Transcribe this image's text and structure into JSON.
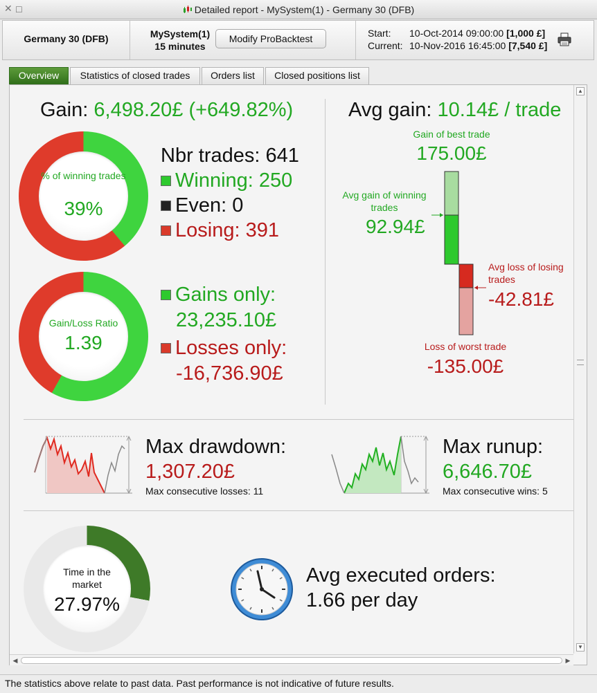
{
  "window": {
    "title": "Detailed report - MySystem(1) - Germany 30 (DFB)",
    "close_glyph": "✕",
    "maximize_glyph": "☐"
  },
  "header": {
    "instrument": "Germany 30 (DFB)",
    "system_name": "MySystem(1)",
    "timeframe": "15 minutes",
    "modify_button": "Modify ProBacktest",
    "start_label": "Start:",
    "start_date": "10-Oct-2014 09:00:00",
    "start_value": "[1,000 £]",
    "current_label": "Current:",
    "current_date": "10-Nov-2016 16:45:00",
    "current_value": "[7,540 £]"
  },
  "tabs": [
    {
      "label": "Overview",
      "active": true
    },
    {
      "label": "Statistics of closed trades",
      "active": false
    },
    {
      "label": "Orders list",
      "active": false
    },
    {
      "label": "Closed positions list",
      "active": false
    }
  ],
  "overview": {
    "gain_label": "Gain:",
    "gain_value": "6,498.20£ (+649.82%)",
    "winning_ring": {
      "label": "% of winning trades",
      "value": "39%",
      "fraction": 0.39
    },
    "nbr_trades": "Nbr trades: 641",
    "winning": "Winning: 250",
    "even": "Even: 0",
    "losing": "Losing: 391",
    "ratio_ring": {
      "label": "Gain/Loss Ratio",
      "value": "1.39",
      "green_fraction": 0.581
    },
    "gains_only_label": "Gains only:",
    "gains_only_value": "23,235.10£",
    "losses_only_label": "Losses only:",
    "losses_only_value": "-16,736.90£",
    "avg_gain_label": "Avg gain:",
    "avg_gain_value": "10.14£ / trade",
    "best_trade_label": "Gain of best trade",
    "best_trade_value": "175.00£",
    "avg_win_label_1": "Avg gain of winning",
    "avg_win_label_2": "trades",
    "avg_win_value": "92.94£",
    "avg_loss_label_1": "Avg loss of losing",
    "avg_loss_label_2": "trades",
    "avg_loss_value": "-42.81£",
    "worst_trade_label": "Loss of worst trade",
    "worst_trade_value": "-135.00£",
    "max_drawdown_label": "Max drawdown:",
    "max_drawdown_value": "1,307.20£",
    "max_consec_losses": "Max consecutive losses: 11",
    "max_runup_label": "Max runup:",
    "max_runup_value": "6,646.70£",
    "max_consec_wins": "Max consecutive wins: 5",
    "time_market_label_1": "Time in the",
    "time_market_label_2": "market",
    "time_market_value": "27.97%",
    "time_market_fraction": 0.2797,
    "avg_orders_label": "Avg executed orders:",
    "avg_orders_value": "1.66 per day"
  },
  "colors": {
    "green": "#22a822",
    "red": "#b81b1b",
    "dark_green": "#2f6e1a"
  },
  "footer": "The statistics above relate to past data. Past performance is not indicative of future results."
}
